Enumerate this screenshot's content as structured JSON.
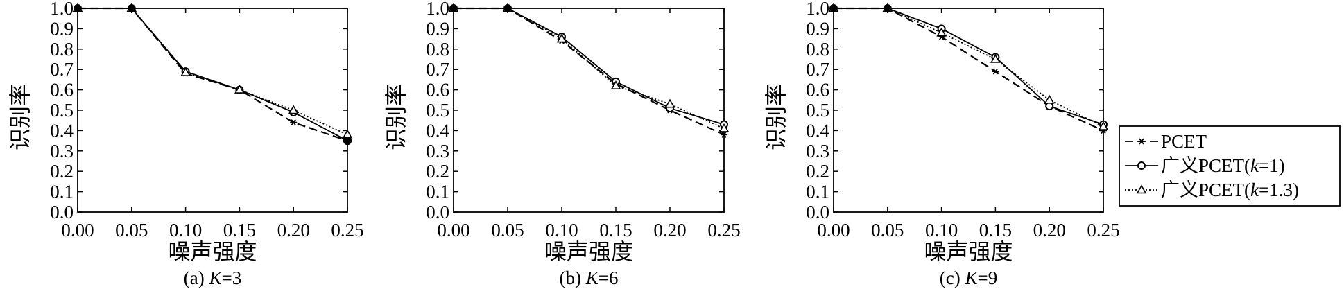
{
  "chart_data": [
    {
      "type": "line",
      "caption_prefix": "(a) ",
      "caption_var": "K",
      "caption_suffix": "=3",
      "xlabel": "噪声强度",
      "ylabel": "识别率",
      "x": [
        0.0,
        0.05,
        0.1,
        0.15,
        0.2,
        0.25
      ],
      "x_tick_labels": [
        "0.00",
        "0.05",
        "0.10",
        "0.15",
        "0.20",
        "0.25"
      ],
      "y_tick_labels": [
        "0.0",
        "0.1",
        "0.2",
        "0.3",
        "0.4",
        "0.5",
        "0.6",
        "0.7",
        "0.8",
        "0.9",
        "1.0"
      ],
      "xlim": [
        0,
        0.25
      ],
      "ylim": [
        0,
        1.0
      ],
      "series": [
        {
          "name": "PCET",
          "values": [
            1.0,
            1.0,
            0.68,
            0.6,
            0.44,
            0.35
          ]
        },
        {
          "name": "广义PCET(k=1)",
          "values": [
            1.0,
            1.0,
            0.69,
            0.6,
            0.49,
            0.35
          ]
        },
        {
          "name": "广义PCET(k=1.3)",
          "values": [
            1.0,
            1.0,
            0.685,
            0.6,
            0.5,
            0.38
          ]
        }
      ]
    },
    {
      "type": "line",
      "caption_prefix": "(b) ",
      "caption_var": "K",
      "caption_suffix": "=6",
      "xlabel": "噪声强度",
      "ylabel": "识别率",
      "x": [
        0.0,
        0.05,
        0.1,
        0.15,
        0.2,
        0.25
      ],
      "x_tick_labels": [
        "0.00",
        "0.05",
        "0.10",
        "0.15",
        "0.20",
        "0.25"
      ],
      "y_tick_labels": [
        "0.0",
        "0.1",
        "0.2",
        "0.3",
        "0.4",
        "0.5",
        "0.6",
        "0.7",
        "0.8",
        "0.9",
        "1.0"
      ],
      "xlim": [
        0,
        0.25
      ],
      "ylim": [
        0,
        1.0
      ],
      "series": [
        {
          "name": "PCET",
          "values": [
            1.0,
            1.0,
            0.84,
            0.63,
            0.5,
            0.38
          ]
        },
        {
          "name": "广义PCET(k=1)",
          "values": [
            1.0,
            1.0,
            0.86,
            0.64,
            0.51,
            0.43
          ]
        },
        {
          "name": "广义PCET(k=1.3)",
          "values": [
            1.0,
            1.0,
            0.85,
            0.62,
            0.53,
            0.41
          ]
        }
      ]
    },
    {
      "type": "line",
      "caption_prefix": "(c) ",
      "caption_var": "K",
      "caption_suffix": "=9",
      "xlabel": "噪声强度",
      "ylabel": "识别率",
      "x": [
        0.0,
        0.05,
        0.1,
        0.15,
        0.2,
        0.25
      ],
      "x_tick_labels": [
        "0.00",
        "0.05",
        "0.10",
        "0.15",
        "0.20",
        "0.25"
      ],
      "y_tick_labels": [
        "0.0",
        "0.1",
        "0.2",
        "0.3",
        "0.4",
        "0.5",
        "0.6",
        "0.7",
        "0.8",
        "0.9",
        "1.0"
      ],
      "xlim": [
        0,
        0.25
      ],
      "ylim": [
        0,
        1.0
      ],
      "series": [
        {
          "name": "PCET",
          "values": [
            1.0,
            1.0,
            0.86,
            0.69,
            0.52,
            0.4
          ]
        },
        {
          "name": "广义PCET(k=1)",
          "values": [
            1.0,
            1.0,
            0.9,
            0.76,
            0.52,
            0.43
          ]
        },
        {
          "name": "广义PCET(k=1.3)",
          "values": [
            1.0,
            1.0,
            0.88,
            0.75,
            0.55,
            0.42
          ]
        }
      ]
    }
  ],
  "legend": {
    "placement": "right",
    "items": [
      {
        "prefix": "",
        "var": "",
        "suffix": "PCET",
        "style": "dashed",
        "marker": "star"
      },
      {
        "prefix": "广义PCET(",
        "var": "k",
        "suffix": "=1)",
        "style": "solid",
        "marker": "circle"
      },
      {
        "prefix": "广义PCET(",
        "var": "k",
        "suffix": "=1.3)",
        "style": "dotted",
        "marker": "triangle"
      }
    ]
  }
}
